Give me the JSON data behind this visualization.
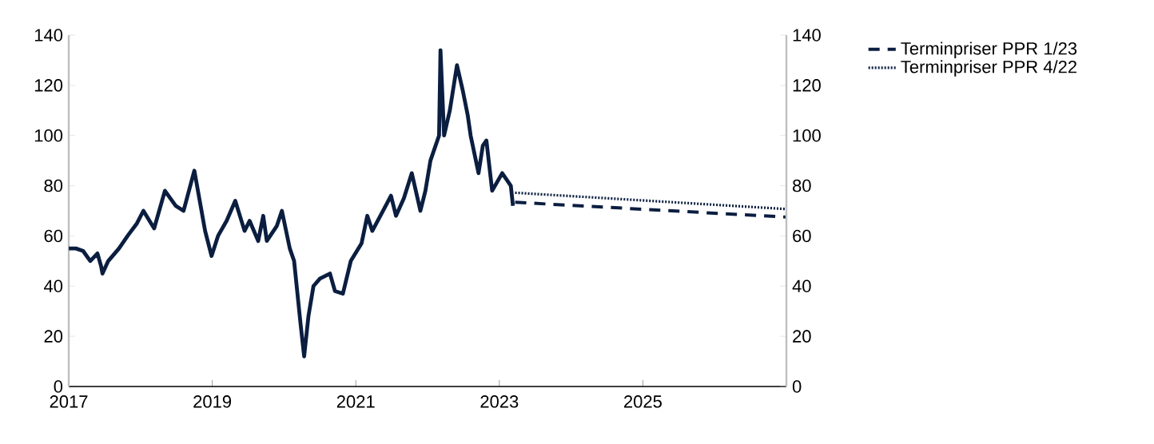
{
  "chart_data": {
    "type": "line",
    "xlim": [
      2017,
      2027
    ],
    "xticks": [
      2017,
      2019,
      2021,
      2023,
      2025
    ],
    "ylim": [
      0,
      140
    ],
    "yticks": [
      0,
      20,
      40,
      60,
      80,
      100,
      120,
      140
    ],
    "y2lim": [
      0,
      140
    ],
    "y2ticks": [
      0,
      20,
      40,
      60,
      80,
      100,
      120,
      140
    ],
    "legend": "right",
    "series": [
      {
        "color": "#0b1e40",
        "line_style": "solid",
        "x": [
          2017.0,
          2017.1,
          2017.2,
          2017.3,
          2017.4,
          2017.45,
          2017.47,
          2017.55,
          2017.7,
          2017.82,
          2017.95,
          2018.04,
          2018.19,
          2018.34,
          2018.49,
          2018.6,
          2018.75,
          2018.9,
          2018.99,
          2019.08,
          2019.2,
          2019.32,
          2019.45,
          2019.52,
          2019.64,
          2019.71,
          2019.76,
          2019.9,
          2019.97,
          2020.08,
          2020.14,
          2020.23,
          2020.28,
          2020.34,
          2020.41,
          2020.5,
          2020.64,
          2020.71,
          2020.82,
          2020.93,
          2021.08,
          2021.16,
          2021.23,
          2021.38,
          2021.49,
          2021.56,
          2021.67,
          2021.78,
          2021.9,
          2021.97,
          2022.04,
          2022.16,
          2022.18,
          2022.23,
          2022.31,
          2022.41,
          2022.49,
          2022.56,
          2022.6,
          2022.71,
          2022.77,
          2022.82,
          2022.9,
          2023.04,
          2023.16,
          2023.19
        ],
        "values": [
          55,
          55,
          54,
          50,
          53,
          48,
          45,
          50,
          55,
          60,
          65,
          70,
          63,
          78,
          72,
          70,
          86,
          62,
          52,
          60,
          66,
          74,
          62,
          66,
          58,
          68,
          58,
          64,
          70,
          55,
          50,
          25,
          12,
          28,
          40,
          43,
          45,
          38,
          37,
          50,
          57,
          68,
          62,
          70,
          76,
          68,
          75,
          85,
          70,
          78,
          90,
          100,
          134,
          100,
          110,
          128,
          118,
          108,
          100,
          85,
          96,
          98,
          78,
          85,
          80,
          72
        ]
      },
      {
        "name": "Terminpriser PPR 1/23",
        "color": "#0b1e40",
        "line_style": "dashed",
        "x": [
          2023.22,
          2027
        ],
        "values": [
          73.4,
          67.5
        ]
      },
      {
        "name": "Terminpriser PPR 4/22",
        "color": "#0b1e40",
        "line_style": "dotted",
        "x": [
          2023.22,
          2027
        ],
        "values": [
          77.2,
          70.7
        ]
      }
    ]
  }
}
